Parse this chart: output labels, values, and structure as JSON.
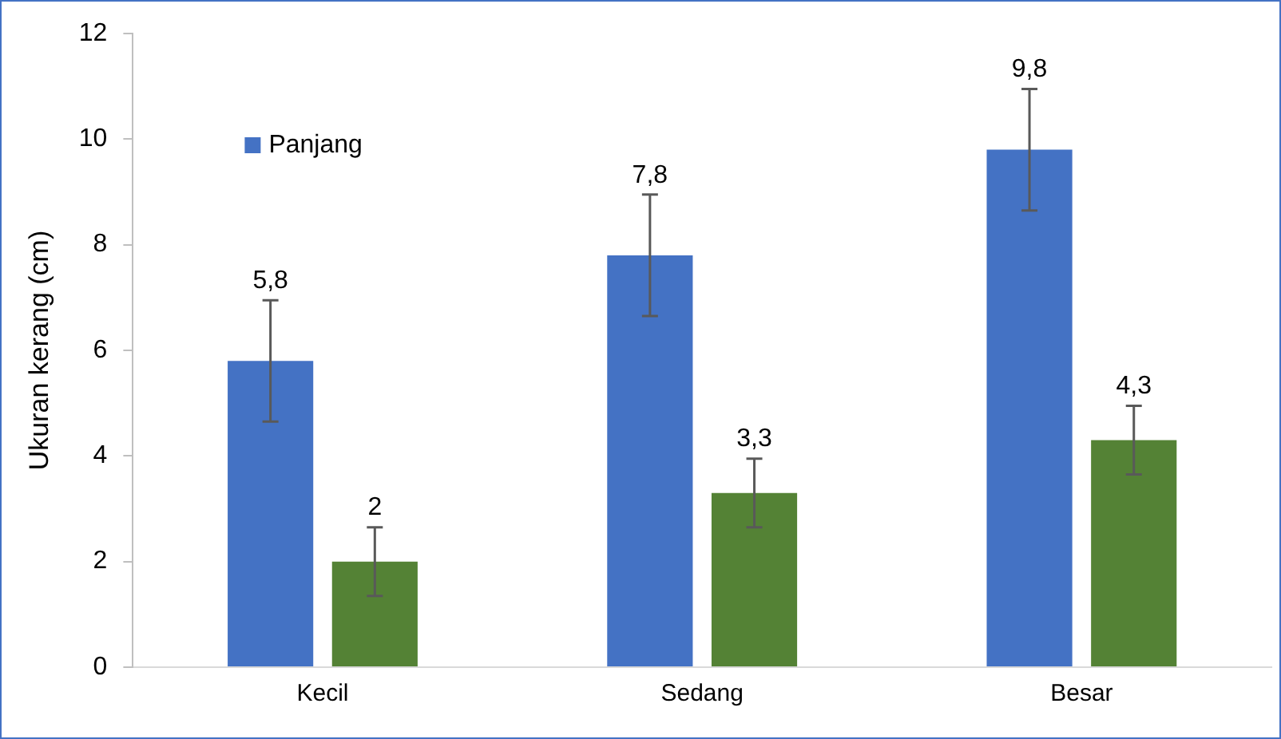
{
  "chart_data": {
    "type": "bar",
    "ylabel": "Ukuran kerang (cm)",
    "categories": [
      "Kecil",
      "Sedang",
      "Besar"
    ],
    "series": [
      {
        "name": "Panjang",
        "color": "#4472c4",
        "values": [
          5.8,
          7.8,
          9.8
        ],
        "errors": [
          1.15,
          1.15,
          1.15
        ],
        "value_labels": [
          "5,8",
          "7,8",
          "9,8"
        ]
      },
      {
        "color": "#548235",
        "values": [
          2,
          3.3,
          4.3
        ],
        "errors": [
          0.65,
          0.65,
          0.65
        ],
        "value_labels": [
          "2",
          "3,3",
          "4,3"
        ]
      }
    ],
    "ylim": [
      0,
      12
    ],
    "yticks": [
      0,
      2,
      4,
      6,
      8,
      10,
      12
    ],
    "grid": false,
    "legend": "top left"
  }
}
